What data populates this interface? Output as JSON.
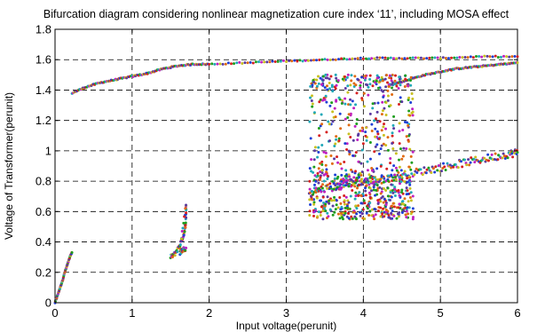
{
  "chart_data": {
    "type": "scatter",
    "title": "Bifurcation diagram considering nonlinear magnetization cure index ‘11’, including MOSA effect",
    "xlabel": "Input voltage(perunit)",
    "ylabel": "Voltage of Transformer(perunit)",
    "xlim": [
      0,
      6
    ],
    "ylim": [
      0,
      1.8
    ],
    "x_ticks": [
      "0",
      "1",
      "2",
      "3",
      "4",
      "5",
      "6"
    ],
    "y_ticks": [
      "0",
      "0.2",
      "0.4",
      "0.6",
      "0.8",
      "1",
      "1.2",
      "1.4",
      "1.6",
      "1.8"
    ],
    "grid": "dashed",
    "legend": "none",
    "marker_colors": [
      "#1f3fd6",
      "#d62020",
      "#1e9e1e",
      "#20a8b8",
      "#c020c0",
      "#c8c020",
      "#5a3aa0",
      "#e06a10"
    ],
    "series": [
      {
        "branch": "lower-start",
        "points": [
          [
            0.0,
            0.0
          ],
          [
            0.02,
            0.03
          ],
          [
            0.04,
            0.06
          ],
          [
            0.06,
            0.09
          ],
          [
            0.08,
            0.12
          ],
          [
            0.1,
            0.15
          ],
          [
            0.12,
            0.19
          ],
          [
            0.14,
            0.22
          ],
          [
            0.16,
            0.25
          ],
          [
            0.18,
            0.28
          ],
          [
            0.2,
            0.31
          ],
          [
            0.22,
            0.33
          ]
        ]
      },
      {
        "branch": "upper-main",
        "points": [
          [
            0.22,
            1.38
          ],
          [
            0.4,
            1.42
          ],
          [
            0.6,
            1.45
          ],
          [
            0.8,
            1.47
          ],
          [
            1.0,
            1.49
          ],
          [
            1.2,
            1.51
          ],
          [
            1.4,
            1.54
          ],
          [
            1.6,
            1.56
          ],
          [
            1.8,
            1.57
          ],
          [
            2.0,
            1.57
          ],
          [
            2.5,
            1.58
          ],
          [
            3.0,
            1.59
          ],
          [
            3.5,
            1.6
          ],
          [
            4.0,
            1.61
          ],
          [
            4.5,
            1.61
          ],
          [
            5.0,
            1.61
          ],
          [
            5.5,
            1.62
          ],
          [
            6.0,
            1.62
          ]
        ]
      },
      {
        "branch": "mid-island",
        "points": [
          [
            1.5,
            0.3
          ],
          [
            1.55,
            0.32
          ],
          [
            1.6,
            0.36
          ],
          [
            1.65,
            0.42
          ],
          [
            1.68,
            0.47
          ],
          [
            1.7,
            0.55
          ],
          [
            1.7,
            0.65
          ],
          [
            1.62,
            0.33
          ],
          [
            1.66,
            0.35
          ],
          [
            1.7,
            0.36
          ]
        ]
      },
      {
        "branch": "upper-secondary",
        "points": [
          [
            4.4,
            1.44
          ],
          [
            4.6,
            1.47
          ],
          [
            4.8,
            1.5
          ],
          [
            5.0,
            1.52
          ],
          [
            5.2,
            1.54
          ],
          [
            5.4,
            1.55
          ],
          [
            5.6,
            1.56
          ],
          [
            5.8,
            1.57
          ],
          [
            6.0,
            1.58
          ]
        ]
      },
      {
        "branch": "lower-secondary",
        "points": [
          [
            3.3,
            0.73
          ],
          [
            3.5,
            0.75
          ],
          [
            3.7,
            0.77
          ],
          [
            3.9,
            0.79
          ],
          [
            4.1,
            0.8
          ],
          [
            4.3,
            0.82
          ],
          [
            4.5,
            0.84
          ],
          [
            4.7,
            0.86
          ],
          [
            4.9,
            0.88
          ],
          [
            5.1,
            0.9
          ],
          [
            5.3,
            0.92
          ],
          [
            5.5,
            0.94
          ],
          [
            5.7,
            0.96
          ],
          [
            5.9,
            0.98
          ],
          [
            6.0,
            0.99
          ]
        ]
      },
      {
        "branch": "chaotic-band",
        "x_range": [
          3.3,
          4.65
        ],
        "y_range": [
          0.55,
          1.5
        ]
      }
    ]
  }
}
